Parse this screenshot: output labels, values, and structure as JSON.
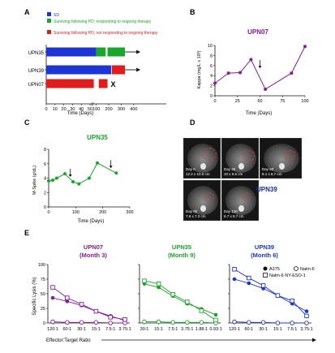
{
  "panels": {
    "A": {
      "letter": "A",
      "legend": [
        {
          "label": "SD",
          "color": "#1d35d6"
        },
        {
          "label": "Surviving following PD; responding to ongoing therapy",
          "color": "#1aa52b"
        },
        {
          "label": "Surviving following PD; not responding to ongoing therapy",
          "color": "#e01c1c"
        }
      ],
      "xlabel": "Time (Days)",
      "x_tick_labels": [
        "0",
        "10",
        "20",
        "30",
        "40",
        "50",
        "100",
        "200",
        "300",
        "400"
      ],
      "break_label": "//",
      "status_mark": "X"
    },
    "B": {
      "letter": "B",
      "title": "UPN07",
      "ylabel": "Kappa (mg/L x 10³)",
      "xlabel": "Time (Days)"
    },
    "C": {
      "letter": "C",
      "title": "UPN35",
      "ylabel": "M-Spike (g/dL)",
      "xlabel": "Time (Days)"
    },
    "D": {
      "letter": "D",
      "label": "UPN39",
      "scans": [
        {
          "day": "Day 0",
          "size": "12.2 x 10.6 cm"
        },
        {
          "day": "Day 28",
          "size": "10 x 9.6 cm"
        },
        {
          "day": "Day 60",
          "size": "8.1 x 8.7 cm"
        },
        {
          "day": "Day 90",
          "size": "7.6 x 7.3 cm"
        },
        {
          "day": "Day 120",
          "size": "5.7 x 6.7 cm"
        }
      ]
    },
    "E": {
      "letter": "E",
      "ylabel": "Specific Lysis (%)",
      "xlabel": "Effector:Target Ratio",
      "legend": [
        "A375",
        "Nalm-6",
        "Nalm-6 NY-ESO-1"
      ],
      "subpanels": [
        {
          "title": "UPN07",
          "subtitle": "(Month 3)",
          "color": "#8a1aa0"
        },
        {
          "title": "UPN35",
          "subtitle": "(Month 9)",
          "color": "#1aa52b"
        },
        {
          "title": "UPN39",
          "subtitle": "(Month 6)",
          "color": "#1d35d6"
        }
      ]
    }
  },
  "chart_data": [
    {
      "id": "A",
      "type": "bar",
      "orientation": "horizontal",
      "xlabel": "Time (Days)",
      "categories": [
        "UPN35",
        "UPN39",
        "UPN07"
      ],
      "segments": [
        [
          {
            "state": "SD",
            "start": 0,
            "end": 100
          },
          {
            "state": "responding",
            "start": 100,
            "end": 175
          },
          {
            "state": "responding",
            "start": 190,
            "end": 330
          }
        ],
        [
          {
            "state": "SD",
            "start": 0,
            "end": 220
          },
          {
            "state": "not-responding",
            "start": 225,
            "end": 330
          }
        ],
        [
          {
            "state": "not-responding",
            "start": 0,
            "end": 80
          },
          {
            "state": "not-responding",
            "start": 120,
            "end": 190
          }
        ]
      ],
      "ongoing": [
        "UPN35",
        "UPN39"
      ],
      "deceased_marker": "UPN07"
    },
    {
      "id": "B",
      "type": "line",
      "title": "UPN07",
      "xlabel": "Time (Days)",
      "ylabel": "Kappa (mg/L x 10³)",
      "x": [
        0,
        15,
        28,
        40,
        56,
        85,
        100
      ],
      "y": [
        2.5,
        4.5,
        4.6,
        7.2,
        1.3,
        4.5,
        9.8
      ],
      "xlim": [
        0,
        100
      ],
      "ylim": [
        0,
        10
      ],
      "x_ticks": [
        0,
        25,
        50,
        75,
        100
      ],
      "y_ticks": [
        0,
        2,
        4,
        6,
        8,
        10
      ],
      "arrows_at_x": [
        50
      ]
    },
    {
      "id": "C",
      "type": "line",
      "title": "UPN35",
      "xlabel": "Time (Days)",
      "ylabel": "M-Spike (g/dL)",
      "x": [
        0,
        15,
        30,
        60,
        90,
        112,
        150,
        180,
        250
      ],
      "y": [
        3.6,
        3.7,
        4.0,
        4.6,
        3.5,
        3.2,
        4.0,
        6.1,
        4.7
      ],
      "xlim": [
        0,
        300
      ],
      "ylim": [
        0,
        8
      ],
      "x_ticks": [
        0,
        100,
        200,
        300
      ],
      "y_ticks": [
        0,
        2,
        4,
        6,
        8
      ],
      "arrows_at_x": [
        80,
        230
      ]
    },
    {
      "id": "E",
      "type": "line",
      "ylabel": "Specific Lysis (%)",
      "xlabel": "Effector:Target Ratio",
      "ylim": [
        0,
        100
      ],
      "y_ticks": [
        0,
        25,
        50,
        75,
        100
      ],
      "panels": [
        {
          "title": "UPN07",
          "subtitle": "(Month 3)",
          "categories": [
            "120:1",
            "60:1",
            "30:1",
            "15:1",
            "7.5:1",
            "3.75:1"
          ],
          "series": [
            {
              "name": "A375",
              "values": [
                43,
                37,
                30,
                20,
                12,
                4
              ]
            },
            {
              "name": "Nalm-6",
              "values": [
                2,
                1,
                1,
                1,
                0,
                0
              ]
            },
            {
              "name": "Nalm-6 NY-ESO-1",
              "values": [
                61,
                43,
                32,
                20,
                10,
                6
              ]
            }
          ]
        },
        {
          "title": "UPN35",
          "subtitle": "(Month 9)",
          "categories": [
            "30:1",
            "15:1",
            "7.5:1",
            "3.75:1",
            "1.88:1",
            "0.93:1"
          ],
          "series": [
            {
              "name": "A375",
              "values": [
                67,
                61,
                46,
                33,
                24,
                14
              ]
            },
            {
              "name": "Nalm-6",
              "values": [
                2,
                2,
                1,
                1,
                1,
                0
              ]
            },
            {
              "name": "Nalm-6 NY-ESO-1",
              "values": [
                72,
                67,
                49,
                36,
                21,
                5
              ]
            }
          ]
        },
        {
          "title": "UPN39",
          "subtitle": "(Month 6)",
          "categories": [
            "120:1",
            "60:1",
            "30:1",
            "15:1",
            "7.5:1",
            "3.75:1"
          ],
          "series": [
            {
              "name": "A375",
              "values": [
                75,
                68,
                59,
                47,
                33,
                20
              ]
            },
            {
              "name": "Nalm-6",
              "values": [
                2,
                1,
                1,
                0,
                0,
                0
              ]
            },
            {
              "name": "Nalm-6 NY-ESO-1",
              "values": [
                92,
                77,
                64,
                47,
                38,
                12
              ]
            }
          ]
        }
      ]
    }
  ]
}
